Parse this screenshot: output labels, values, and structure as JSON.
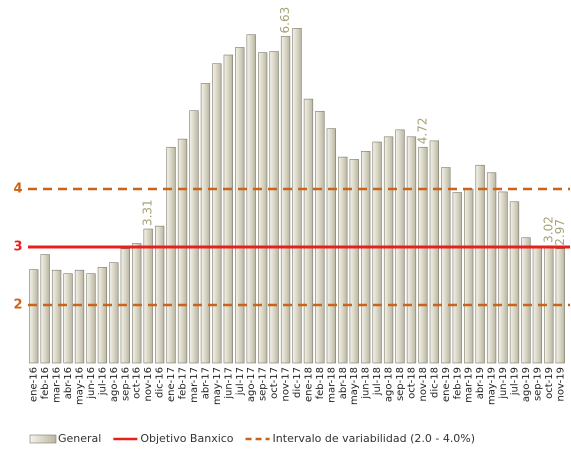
{
  "chart_data": {
    "type": "bar",
    "categories": [
      "ene-16",
      "feb-16",
      "mar-16",
      "abr-16",
      "may-16",
      "jun-16",
      "jul-16",
      "ago-16",
      "sep-16",
      "oct-16",
      "nov-16",
      "dic-16",
      "ene-17",
      "feb-17",
      "mar-17",
      "abr-17",
      "may-17",
      "jun-17",
      "jul-17",
      "ago-17",
      "sep-17",
      "oct-17",
      "nov-17",
      "dic-17",
      "ene-18",
      "feb-18",
      "mar-18",
      "abr-18",
      "may-18",
      "jun-18",
      "jul-18",
      "ago-18",
      "sep-18",
      "oct-18",
      "nov-18",
      "dic-18",
      "ene-19",
      "feb-19",
      "mar-19",
      "abr-19",
      "may-19",
      "jun-19",
      "jul-19",
      "ago-19",
      "sep-19",
      "oct-19",
      "nov-19"
    ],
    "series": [
      {
        "name": "General",
        "color": "#d9d6c6",
        "values": [
          2.61,
          2.87,
          2.6,
          2.54,
          2.6,
          2.54,
          2.65,
          2.73,
          2.97,
          3.06,
          3.31,
          3.36,
          4.72,
          4.86,
          5.35,
          5.82,
          6.16,
          6.31,
          6.44,
          6.66,
          6.35,
          6.37,
          6.63,
          6.77,
          5.55,
          5.34,
          5.04,
          4.55,
          4.51,
          4.65,
          4.81,
          4.9,
          5.02,
          4.9,
          4.72,
          4.83,
          4.37,
          3.94,
          4.0,
          4.41,
          4.28,
          3.95,
          3.78,
          3.16,
          3.0,
          3.02,
          2.97
        ],
        "value_labels": [
          null,
          null,
          null,
          null,
          null,
          null,
          null,
          null,
          null,
          null,
          "3.31",
          null,
          null,
          null,
          null,
          null,
          null,
          null,
          null,
          null,
          null,
          null,
          "6.63",
          null,
          null,
          null,
          null,
          null,
          null,
          null,
          null,
          null,
          null,
          null,
          "4.72",
          null,
          null,
          null,
          null,
          null,
          null,
          null,
          null,
          null,
          null,
          "3.02",
          "2.97"
        ]
      }
    ],
    "reference_lines": [
      {
        "name": "Objetivo Banxico",
        "color": "#e8201c",
        "dashed": false,
        "values": [
          3
        ]
      },
      {
        "name": "Intervalo de variabilidad (2.0 - 4.0%)",
        "color": "#c8651b",
        "dashed": true,
        "values": [
          2,
          4
        ]
      }
    ],
    "ylim": [
      1,
      7
    ],
    "yticks": [
      2,
      3,
      4
    ]
  }
}
